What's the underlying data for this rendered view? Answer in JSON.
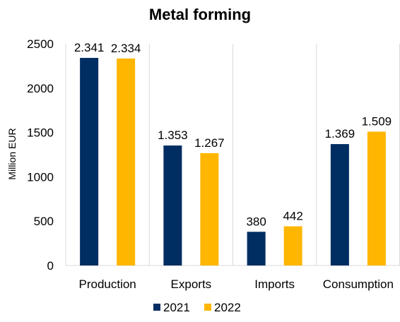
{
  "chart_data": {
    "type": "bar",
    "title": "Metal forming",
    "xlabel": "",
    "ylabel": "Million EUR",
    "ylim": [
      0,
      2500
    ],
    "yticks": [
      0,
      500,
      1000,
      1500,
      2000,
      2500
    ],
    "categories": [
      "Production",
      "Exports",
      "Imports",
      "Consumption"
    ],
    "series": [
      {
        "name": "2021",
        "color": "#002d62",
        "values": [
          2341,
          1353,
          380,
          1369
        ],
        "labels": [
          "2.341",
          "1.353",
          "380",
          "1.369"
        ]
      },
      {
        "name": "2022",
        "color": "#ffb600",
        "values": [
          2334,
          1267,
          442,
          1509
        ],
        "labels": [
          "2.334",
          "1.267",
          "442",
          "1.509"
        ]
      }
    ],
    "grid": "vertical category separators",
    "legend_position": "bottom"
  }
}
